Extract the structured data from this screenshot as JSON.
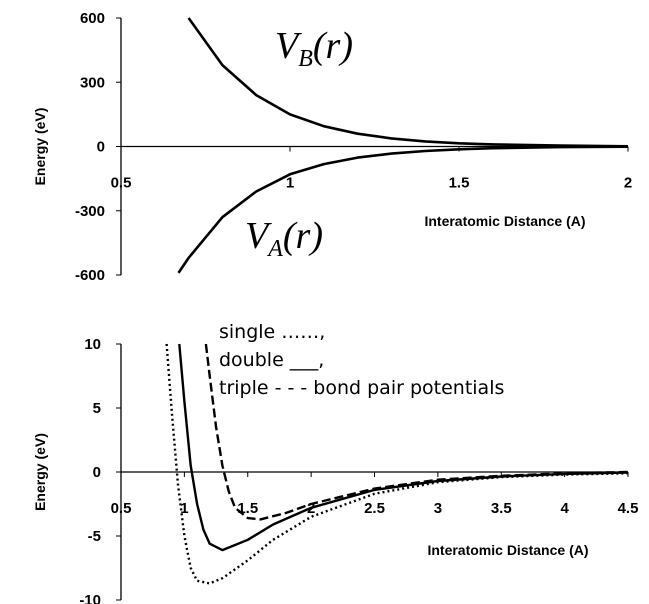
{
  "chart_data": [
    {
      "type": "line",
      "title": "",
      "xlabel": "Interatomic Distance (A)",
      "ylabel": "Energy (eV)",
      "xlim": [
        0.5,
        2
      ],
      "ylim": [
        -600,
        600
      ],
      "x_ticks": [
        "0.5",
        "1",
        "1.5",
        "2"
      ],
      "y_ticks": [
        "600",
        "300",
        "0",
        "-300",
        "-600"
      ],
      "series": [
        {
          "name": "V_B(r)",
          "label_main": "V",
          "label_sub": "B",
          "label_arg": "(r)",
          "color": "#000000",
          "x": [
            0.7,
            0.8,
            0.9,
            1.0,
            1.1,
            1.2,
            1.3,
            1.4,
            1.5,
            1.6,
            1.8,
            2.0
          ],
          "y": [
            600,
            380,
            240,
            150,
            95,
            60,
            38,
            24,
            15,
            10,
            4,
            1
          ]
        },
        {
          "name": "V_A(r)",
          "label_main": "V",
          "label_sub": "A",
          "label_arg": "(r)",
          "color": "#000000",
          "x": [
            0.67,
            0.7,
            0.8,
            0.9,
            1.0,
            1.1,
            1.2,
            1.3,
            1.4,
            1.5,
            1.6,
            1.8,
            2.0
          ],
          "y": [
            -590,
            -520,
            -330,
            -210,
            -130,
            -82,
            -52,
            -33,
            -21,
            -13,
            -8,
            -3,
            -1
          ]
        }
      ]
    },
    {
      "type": "line",
      "title": "",
      "xlabel": "Interatomic Distance (A)",
      "ylabel": "Energy (eV)",
      "xlim": [
        0.5,
        4.5
      ],
      "ylim": [
        -10,
        10
      ],
      "x_ticks": [
        "0.5",
        "1",
        "1.5",
        "2",
        "2.5",
        "3",
        "3.5",
        "4",
        "4.5"
      ],
      "y_ticks": [
        "10",
        "5",
        "0",
        "-5",
        "-10"
      ],
      "legend_lines": [
        "single  ……,",
        "double ___,",
        "triple   - - -  bond pair potentials"
      ],
      "series": [
        {
          "name": "single",
          "style": "dotted",
          "color": "#000000",
          "x": [
            0.86,
            0.9,
            0.95,
            1.0,
            1.05,
            1.1,
            1.2,
            1.3,
            1.5,
            1.7,
            2.0,
            2.5,
            3.0,
            3.5,
            4.0,
            4.5
          ],
          "y": [
            10,
            4.8,
            -1,
            -5,
            -7.5,
            -8.5,
            -8.7,
            -8.3,
            -6.9,
            -5.3,
            -3.5,
            -1.7,
            -0.8,
            -0.4,
            -0.2,
            -0.1
          ]
        },
        {
          "name": "double",
          "style": "solid",
          "color": "#000000",
          "x": [
            0.96,
            1.0,
            1.05,
            1.1,
            1.15,
            1.2,
            1.3,
            1.5,
            1.7,
            2.0,
            2.5,
            3.0,
            3.5,
            4.0,
            4.5
          ],
          "y": [
            10,
            5.5,
            0.5,
            -2.5,
            -4.5,
            -5.6,
            -6.1,
            -5.3,
            -4.1,
            -2.8,
            -1.4,
            -0.7,
            -0.35,
            -0.15,
            -0.05
          ]
        },
        {
          "name": "triple",
          "style": "dashed",
          "color": "#000000",
          "x": [
            1.17,
            1.2,
            1.25,
            1.3,
            1.35,
            1.4,
            1.5,
            1.6,
            1.8,
            2.0,
            2.5,
            3.0,
            3.5,
            4.0,
            4.5
          ],
          "y": [
            10,
            7.5,
            3.5,
            0.5,
            -1.5,
            -2.8,
            -3.6,
            -3.7,
            -3.2,
            -2.5,
            -1.3,
            -0.6,
            -0.3,
            -0.1,
            0
          ]
        }
      ]
    }
  ]
}
